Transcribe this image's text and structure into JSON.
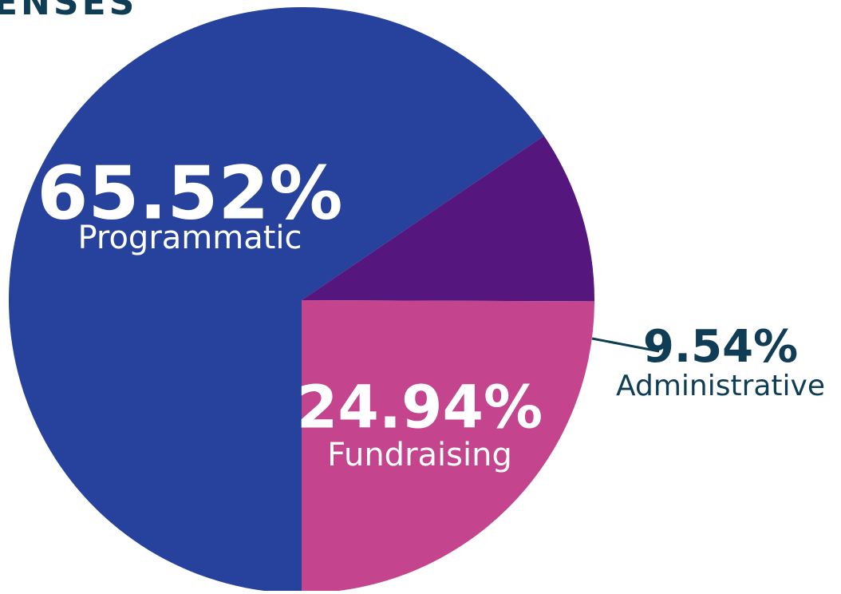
{
  "chart_data": {
    "type": "pie",
    "title": "ENSES",
    "categories": [
      "Programmatic",
      "Administrative",
      "Fundraising"
    ],
    "values": [
      65.52,
      9.54,
      24.94
    ],
    "value_labels": [
      "65.52%",
      "9.54%",
      "24.94%"
    ],
    "colors": [
      "#27429c",
      "#55177d",
      "#c4448e"
    ]
  }
}
